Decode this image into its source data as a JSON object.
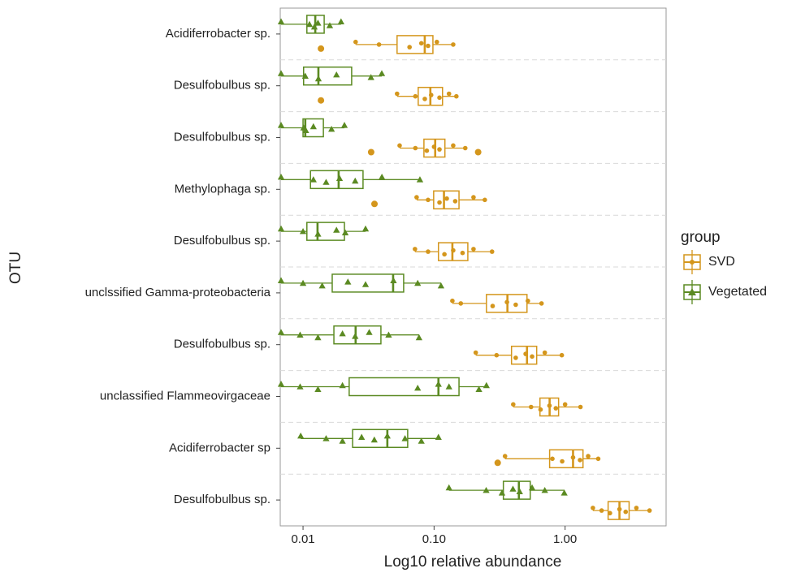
{
  "chart_data": {
    "type": "boxplot",
    "orientation": "horizontal",
    "xscale": "log",
    "xlabel": "Log10 relative abundance",
    "ylabel": "OTU",
    "categories": [
      "Acidiferrobacter sp.",
      "Desulfobulbus sp.",
      "Desulfobulbus sp.",
      "Methylophaga sp.",
      "Desulfobulbus sp.",
      "unclssified Gamma-proteobacteria",
      "Desulfobulbus sp.",
      "unclassified Flammeovirgaceae",
      "Acidiferrobacter sp",
      "Desulfobulbus sp."
    ],
    "xlim": [
      0.0067,
      5.9
    ],
    "xticks": [
      {
        "value": 0.01,
        "label": "0.01"
      },
      {
        "value": 0.1,
        "label": "0.10"
      },
      {
        "value": 1,
        "label": "1.00"
      }
    ],
    "grid": true,
    "legend_title": "group",
    "legend_position": "right",
    "series": [
      {
        "name": "SVD",
        "color": "#d4961c",
        "marker": "circle",
        "boxes": [
          {
            "min": 0.0252,
            "q1": 0.0522,
            "median": 0.0849,
            "q3": 0.098,
            "max": 0.14,
            "outliers": [
              0.0137
            ],
            "points": [
              0.0252,
              0.038,
              0.065,
              0.08,
              0.09,
              0.105,
              0.14
            ]
          },
          {
            "min": 0.0522,
            "q1": 0.0757,
            "median": 0.0937,
            "q3": 0.116,
            "max": 0.148,
            "outliers": [
              0.0137
            ],
            "points": [
              0.0522,
              0.072,
              0.085,
              0.095,
              0.11,
              0.13,
              0.148
            ]
          },
          {
            "min": 0.0546,
            "q1": 0.0837,
            "median": 0.102,
            "q3": 0.121,
            "max": 0.173,
            "outliers": [
              0.0331,
              0.217
            ],
            "points": [
              0.0546,
              0.072,
              0.088,
              0.1,
              0.11,
              0.14,
              0.173
            ]
          },
          {
            "min": 0.0736,
            "q1": 0.0993,
            "median": 0.119,
            "q3": 0.155,
            "max": 0.244,
            "outliers": [
              0.0351
            ],
            "points": [
              0.0736,
              0.09,
              0.11,
              0.125,
              0.145,
              0.2,
              0.244
            ]
          },
          {
            "min": 0.0715,
            "q1": 0.108,
            "median": 0.138,
            "q3": 0.181,
            "max": 0.277,
            "outliers": [],
            "points": [
              0.0715,
              0.09,
              0.12,
              0.14,
              0.165,
              0.2,
              0.277
            ]
          },
          {
            "min": 0.138,
            "q1": 0.251,
            "median": 0.363,
            "q3": 0.512,
            "max": 0.661,
            "outliers": [],
            "points": [
              0.138,
              0.16,
              0.28,
              0.36,
              0.42,
              0.52,
              0.661
            ]
          },
          {
            "min": 0.208,
            "q1": 0.39,
            "median": 0.512,
            "q3": 0.607,
            "max": 0.944,
            "outliers": [],
            "points": [
              0.208,
              0.3,
              0.42,
              0.5,
              0.56,
              0.7,
              0.944
            ]
          },
          {
            "min": 0.402,
            "q1": 0.643,
            "median": 0.762,
            "q3": 0.892,
            "max": 1.31,
            "outliers": [],
            "points": [
              0.402,
              0.55,
              0.65,
              0.76,
              0.85,
              1.0,
              1.31
            ]
          },
          {
            "min": 0.348,
            "q1": 0.762,
            "median": 1.15,
            "q3": 1.37,
            "max": 1.79,
            "outliers": [
              0.306
            ],
            "points": [
              0.348,
              0.8,
              0.95,
              1.15,
              1.3,
              1.5,
              1.79
            ]
          },
          {
            "min": 1.63,
            "q1": 2.13,
            "median": 2.6,
            "q3": 3.08,
            "max": 4.41,
            "outliers": [],
            "points": [
              1.63,
              1.9,
              2.2,
              2.6,
              2.9,
              3.5,
              4.41
            ]
          }
        ]
      },
      {
        "name": "Vegetated",
        "color": "#5b8a22",
        "marker": "triangle",
        "boxes": [
          {
            "min": 0.0068,
            "q1": 0.0107,
            "median": 0.0124,
            "q3": 0.0145,
            "max": 0.0195,
            "outliers": [],
            "points": [
              0.0068,
              0.0112,
              0.0122,
              0.013,
              0.016,
              0.0195
            ]
          },
          {
            "min": 0.0068,
            "q1": 0.0101,
            "median": 0.0131,
            "q3": 0.0235,
            "max": 0.0399,
            "outliers": [],
            "points": [
              0.0068,
              0.0104,
              0.0131,
              0.018,
              0.033,
              0.0399
            ]
          },
          {
            "min": 0.0068,
            "q1": 0.01,
            "median": 0.0104,
            "q3": 0.0143,
            "max": 0.0207,
            "outliers": [],
            "points": [
              0.0068,
              0.0101,
              0.0105,
              0.012,
              0.0165,
              0.0207
            ]
          },
          {
            "min": 0.0068,
            "q1": 0.0114,
            "median": 0.0187,
            "q3": 0.0287,
            "max": 0.078,
            "outliers": [],
            "points": [
              0.0068,
              0.012,
              0.015,
              0.019,
              0.025,
              0.04,
              0.078
            ]
          },
          {
            "min": 0.0068,
            "q1": 0.0107,
            "median": 0.0129,
            "q3": 0.0207,
            "max": 0.03,
            "outliers": [],
            "points": [
              0.0068,
              0.01,
              0.013,
              0.018,
              0.021,
              0.03
            ]
          },
          {
            "min": 0.0068,
            "q1": 0.0167,
            "median": 0.0487,
            "q3": 0.0586,
            "max": 0.113,
            "outliers": [],
            "points": [
              0.0068,
              0.01,
              0.014,
              0.022,
              0.03,
              0.049,
              0.075,
              0.113
            ]
          },
          {
            "min": 0.0068,
            "q1": 0.0172,
            "median": 0.0252,
            "q3": 0.0393,
            "max": 0.0768,
            "outliers": [],
            "points": [
              0.0068,
              0.0095,
              0.013,
              0.02,
              0.025,
              0.032,
              0.045,
              0.0768
            ]
          },
          {
            "min": 0.0068,
            "q1": 0.0225,
            "median": 0.108,
            "q3": 0.155,
            "max": 0.251,
            "outliers": [],
            "points": [
              0.0068,
              0.0095,
              0.013,
              0.02,
              0.075,
              0.108,
              0.13,
              0.22,
              0.251
            ]
          },
          {
            "min": 0.0096,
            "q1": 0.0239,
            "median": 0.044,
            "q3": 0.0629,
            "max": 0.108,
            "outliers": [],
            "points": [
              0.0096,
              0.015,
              0.02,
              0.028,
              0.035,
              0.044,
              0.06,
              0.08,
              0.108
            ]
          },
          {
            "min": 0.13,
            "q1": 0.338,
            "median": 0.444,
            "q3": 0.542,
            "max": 0.986,
            "outliers": [],
            "points": [
              0.13,
              0.25,
              0.33,
              0.4,
              0.45,
              0.56,
              0.7,
              0.986
            ]
          }
        ]
      }
    ]
  }
}
